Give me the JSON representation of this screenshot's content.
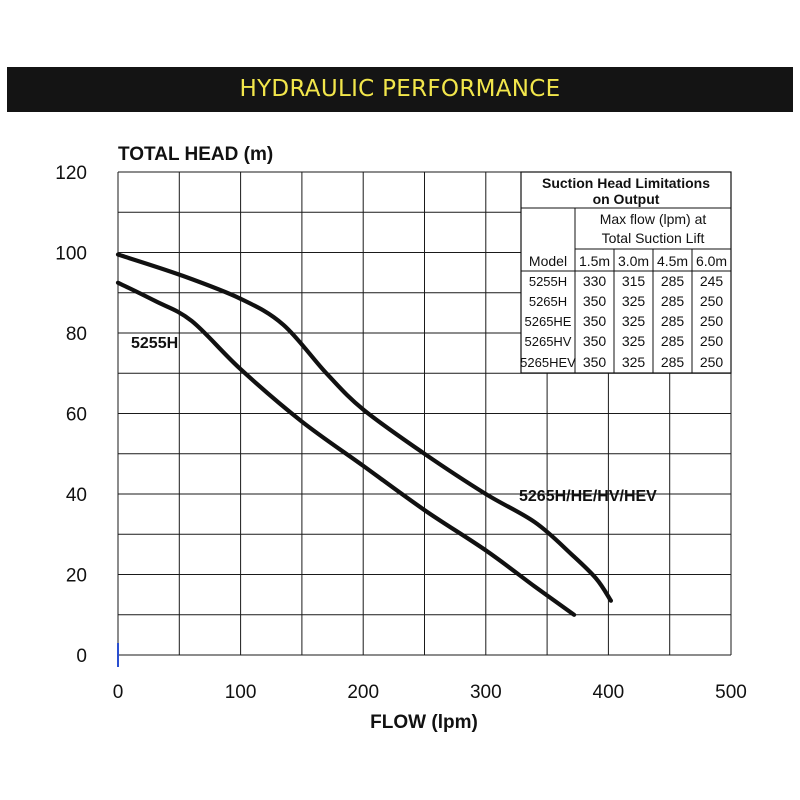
{
  "banner": {
    "title": "HYDRAULIC PERFORMANCE"
  },
  "chart_data": {
    "type": "line",
    "title": "",
    "xlabel": "FLOW (lpm)",
    "ylabel": "TOTAL HEAD (m)",
    "xlim": [
      0,
      500
    ],
    "ylim": [
      0,
      120
    ],
    "x_ticks": [
      0,
      100,
      200,
      300,
      400,
      500
    ],
    "y_ticks": [
      0,
      20,
      40,
      60,
      80,
      100,
      120
    ],
    "grid": true,
    "series": [
      {
        "name": "5255H",
        "points": [
          [
            0,
            92.5
          ],
          [
            30,
            88
          ],
          [
            60,
            83
          ],
          [
            100,
            71
          ],
          [
            150,
            58
          ],
          [
            200,
            47
          ],
          [
            250,
            36
          ],
          [
            300,
            26
          ],
          [
            340,
            17
          ],
          [
            372,
            10
          ]
        ]
      },
      {
        "name": "5265H/HE/HV/HEV",
        "points": [
          [
            0,
            99.5
          ],
          [
            50,
            94.5
          ],
          [
            100,
            88.5
          ],
          [
            135,
            82
          ],
          [
            170,
            70
          ],
          [
            200,
            61
          ],
          [
            250,
            50
          ],
          [
            300,
            40
          ],
          [
            340,
            33
          ],
          [
            370,
            25
          ],
          [
            390,
            19
          ],
          [
            402,
            13.5
          ]
        ]
      }
    ],
    "curve_labels": [
      "5255H",
      "5265H/HE/HV/HEV"
    ],
    "table": {
      "title_lines": [
        "Suction Head Limitations",
        "on Output"
      ],
      "subheader_lines": [
        "Max flow (lpm) at",
        "Total Suction Lift"
      ],
      "columns": [
        "Model",
        "1.5m",
        "3.0m",
        "4.5m",
        "6.0m"
      ],
      "rows": [
        [
          "5255H",
          "330",
          "315",
          "285",
          "245"
        ],
        [
          "5265H",
          "350",
          "325",
          "285",
          "250"
        ],
        [
          "5265HE",
          "350",
          "325",
          "285",
          "250"
        ],
        [
          "5265HV",
          "350",
          "325",
          "285",
          "250"
        ],
        [
          "5265HEV",
          "350",
          "325",
          "285",
          "250"
        ]
      ]
    }
  }
}
